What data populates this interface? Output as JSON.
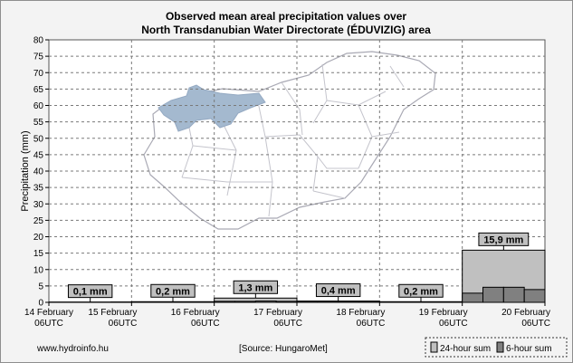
{
  "chart_data": {
    "type": "bar",
    "title_line1": "Observed mean areal precipitation values over",
    "title_line2": "North Transdanubian Water Directorate (ÉDUVIZIG) area",
    "ylabel": "Precipitation (mm)",
    "ylim": [
      0,
      80
    ],
    "yticks": [
      0,
      5,
      10,
      15,
      20,
      25,
      30,
      35,
      40,
      45,
      50,
      55,
      60,
      65,
      70,
      75,
      80
    ],
    "x_ticks": [
      {
        "day": "14 February",
        "time": "06UTC"
      },
      {
        "day": "15 February",
        "time": "06UTC"
      },
      {
        "day": "16 February",
        "time": "06UTC"
      },
      {
        "day": "17 February",
        "time": "06UTC"
      },
      {
        "day": "18 February",
        "time": "06UTC"
      },
      {
        "day": "19 February",
        "time": "06UTC"
      },
      {
        "day": "20 February",
        "time": "06UTC"
      }
    ],
    "grid": true,
    "series": [
      {
        "name": "24-hour sum",
        "color": "#c0c0c0",
        "periods": [
          "14 February 06UTC – 15 February 06UTC",
          "15 February 06UTC – 16 February 06UTC",
          "16 February 06UTC – 17 February 06UTC",
          "17 February 06UTC – 18 February 06UTC",
          "18 February 06UTC – 19 February 06UTC",
          "19 February 06UTC – 20 February 06UTC"
        ],
        "values": [
          0.1,
          0.2,
          1.3,
          0.4,
          0.2,
          15.9
        ],
        "labels": [
          "0,1 mm",
          "0,2 mm",
          "1,3 mm",
          "0,4 mm",
          "0,2 mm",
          "15,9 mm"
        ]
      },
      {
        "name": "6-hour sum",
        "color": "#808080",
        "start_day_index": 5,
        "values_per_6h": [
          [
            0.0,
            0.0,
            0.0,
            0.1
          ],
          [
            0.0,
            0.0,
            0.1,
            0.1
          ],
          [
            0.3,
            0.3,
            0.4,
            0.3
          ],
          [
            0.1,
            0.1,
            0.1,
            0.1
          ],
          [
            0.0,
            0.1,
            0.1,
            0.0
          ],
          [
            2.8,
            4.6,
            4.6,
            3.9
          ]
        ]
      }
    ],
    "legend": {
      "position": "bottom-right",
      "items": [
        "24-hour sum",
        "6-hour sum"
      ]
    }
  },
  "footer": {
    "website": "www.hydroinfo.hu",
    "source": "[Source: HungaroMet]"
  },
  "colors": {
    "background": "#f3f3f3",
    "plot_background": "#ffffff",
    "map_outline": "#a9a9b4",
    "watershed_fill": "#a4b9cf"
  }
}
